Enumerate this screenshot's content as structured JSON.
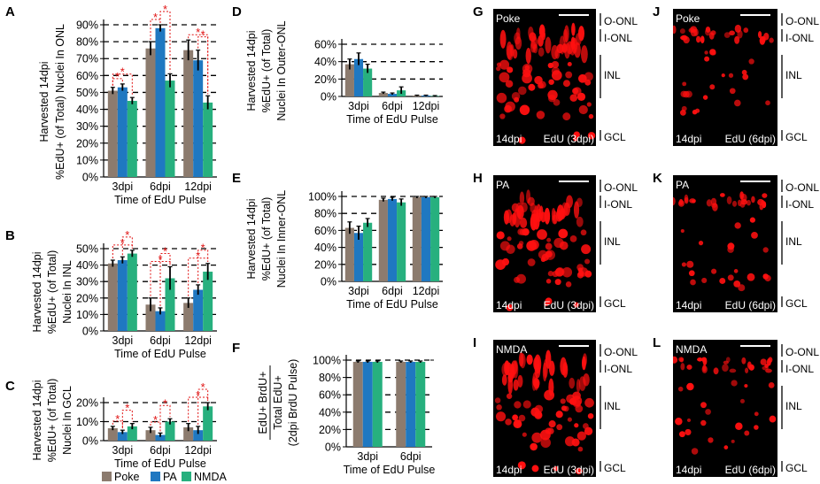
{
  "colors": {
    "Poke": "#8c7b6e",
    "PA": "#1f78c1",
    "NMDA": "#27b07e",
    "sig": "#e01010",
    "micro_bg": "#000000",
    "cell": "#ff1010"
  },
  "legend": [
    "Poke",
    "PA",
    "NMDA"
  ],
  "chart_data": [
    {
      "id": "A",
      "type": "bar",
      "categories": [
        "3dpi",
        "6dpi",
        "12dpi"
      ],
      "xlabel": "Time of EdU Pulse",
      "ylabel": [
        "Harvested 14dpi",
        "%EdU+ (of Total) Nuclei In ONL"
      ],
      "yticks": [
        "0%",
        "10%",
        "20%",
        "30%",
        "40%",
        "50%",
        "60%",
        "70%",
        "80%",
        "90%"
      ],
      "ylim": [
        0,
        90
      ],
      "series": [
        {
          "name": "Poke",
          "values": [
            51,
            76,
            75
          ],
          "errors": [
            2,
            4,
            6
          ]
        },
        {
          "name": "PA",
          "values": [
            53,
            88,
            69
          ],
          "errors": [
            2,
            2,
            6
          ]
        },
        {
          "name": "NMDA",
          "values": [
            45,
            57,
            44
          ],
          "errors": [
            2,
            4,
            4
          ]
        }
      ],
      "significance": [
        {
          "category": 0,
          "pairs": [
            [
              0,
              1
            ],
            [
              0,
              2
            ]
          ],
          "stars": 1
        },
        {
          "category": 1,
          "pairs": [
            [
              0,
              1
            ],
            [
              1,
              2
            ]
          ],
          "stars": 2
        },
        {
          "category": 2,
          "pairs": [
            [
              0,
              2
            ],
            [
              1,
              2
            ]
          ],
          "stars": 1
        }
      ]
    },
    {
      "id": "B",
      "type": "bar",
      "categories": [
        "3dpi",
        "6dpi",
        "12dpi"
      ],
      "xlabel": "Time of EdU Pulse",
      "ylabel": [
        "Harvested 14dpi",
        "%EdU+ (of Total)",
        "Nuclei In INL"
      ],
      "yticks": [
        "0%",
        "10%",
        "20%",
        "30%",
        "40%",
        "50%"
      ],
      "ylim": [
        0,
        50
      ],
      "series": [
        {
          "name": "Poke",
          "values": [
            41,
            16,
            17
          ],
          "errors": [
            2,
            4,
            3
          ]
        },
        {
          "name": "PA",
          "values": [
            43,
            12,
            25
          ],
          "errors": [
            2,
            2,
            3
          ]
        },
        {
          "name": "NMDA",
          "values": [
            47,
            32,
            36
          ],
          "errors": [
            2,
            7,
            5
          ]
        }
      ],
      "significance": [
        {
          "category": 0,
          "pairs": [
            [
              0,
              2
            ],
            [
              1,
              2
            ]
          ],
          "stars": 1
        },
        {
          "category": 1,
          "pairs": [
            [
              0,
              2
            ],
            [
              1,
              2
            ]
          ],
          "stars": 1
        },
        {
          "category": 2,
          "pairs": [
            [
              0,
              2
            ],
            [
              1,
              2
            ]
          ],
          "stars": 1
        }
      ]
    },
    {
      "id": "C",
      "type": "bar",
      "categories": [
        "3dpi",
        "6dpi",
        "12dpi"
      ],
      "xlabel": "Time of EdU Pulse",
      "ylabel": [
        "Harvested 14dpi",
        "%EdU+ (of Total)",
        "Nuclei In GCL"
      ],
      "yticks": [
        "0%",
        "10%",
        "20%"
      ],
      "ylim": [
        0,
        20
      ],
      "series": [
        {
          "name": "Poke",
          "values": [
            6.5,
            5.5,
            7
          ],
          "errors": [
            1,
            1.5,
            2
          ]
        },
        {
          "name": "PA",
          "values": [
            4.5,
            3,
            5.5
          ],
          "errors": [
            1,
            1,
            2
          ]
        },
        {
          "name": "NMDA",
          "values": [
            7.5,
            10,
            18
          ],
          "errors": [
            1.5,
            1.5,
            2
          ]
        }
      ],
      "significance": [
        {
          "category": 0,
          "pairs": [
            [
              0,
              1
            ],
            [
              1,
              2
            ]
          ],
          "stars": 2
        },
        {
          "category": 1,
          "pairs": [
            [
              0,
              1
            ],
            [
              1,
              2
            ]
          ],
          "stars": 2
        },
        {
          "category": 2,
          "pairs": [
            [
              0,
              2
            ],
            [
              1,
              2
            ]
          ],
          "stars": 1
        }
      ]
    },
    {
      "id": "D",
      "type": "bar",
      "categories": [
        "3dpi",
        "6dpi",
        "12dpi"
      ],
      "xlabel": "Time of EdU Pulse",
      "ylabel": [
        "Harvested 14dpi",
        "%EdU+ (of Total)",
        "Nuclei In Outer-ONL"
      ],
      "yticks": [
        "0%",
        "20%",
        "40%",
        "60%"
      ],
      "ylim": [
        0,
        60
      ],
      "series": [
        {
          "name": "Poke",
          "values": [
            37,
            4,
            1
          ],
          "errors": [
            6,
            1,
            0.5
          ]
        },
        {
          "name": "PA",
          "values": [
            43,
            3,
            1
          ],
          "errors": [
            7,
            1,
            0.5
          ]
        },
        {
          "name": "NMDA",
          "values": [
            32,
            7,
            0.5
          ],
          "errors": [
            5,
            4,
            0.5
          ]
        }
      ]
    },
    {
      "id": "E",
      "type": "bar",
      "categories": [
        "3dpi",
        "6dpi",
        "12dpi"
      ],
      "xlabel": "Time of EdU Pulse",
      "ylabel": [
        "Harvested 14dpi",
        "%EdU+ (of Total)",
        "Nuclei In Inner-ONL"
      ],
      "yticks": [
        "0%",
        "20%",
        "40%",
        "60%",
        "80%",
        "100%"
      ],
      "ylim": [
        0,
        100
      ],
      "series": [
        {
          "name": "Poke",
          "values": [
            63,
            96,
            99
          ],
          "errors": [
            7,
            2,
            1
          ]
        },
        {
          "name": "PA",
          "values": [
            57,
            97,
            99
          ],
          "errors": [
            8,
            2,
            1
          ]
        },
        {
          "name": "NMDA",
          "values": [
            69,
            93,
            99
          ],
          "errors": [
            5,
            4,
            1
          ]
        }
      ]
    },
    {
      "id": "F",
      "type": "bar",
      "categories": [
        "3dpi",
        "6dpi"
      ],
      "xlabel": "Time of EdU Pulse",
      "ylabel_fraction": [
        "EdU+ BrdU+",
        "Total EdU+"
      ],
      "ylabel_sub": "(2dpi BrdU Pulse)",
      "yticks": [
        "0%",
        "20%",
        "40%",
        "60%",
        "80%",
        "100%"
      ],
      "ylim": [
        0,
        100
      ],
      "series": [
        {
          "name": "Poke",
          "values": [
            98,
            98
          ],
          "errors": [
            1,
            1
          ]
        },
        {
          "name": "PA",
          "values": [
            98,
            98
          ],
          "errors": [
            1,
            1
          ]
        },
        {
          "name": "NMDA",
          "values": [
            98,
            98
          ],
          "errors": [
            1,
            1
          ]
        }
      ]
    }
  ],
  "micrographs": [
    {
      "id": "G",
      "condition": "Poke",
      "day": "14dpi",
      "pulse": "EdU (3dpi)",
      "layers": [
        "O-ONL",
        "I-ONL",
        "INL",
        "GCL"
      ]
    },
    {
      "id": "J",
      "condition": "Poke",
      "day": "14dpi",
      "pulse": "EdU (6dpi)",
      "layers": [
        "O-ONL",
        "I-ONL",
        "INL",
        "GCL"
      ]
    },
    {
      "id": "H",
      "condition": "PA",
      "day": "14dpi",
      "pulse": "EdU (3dpi)",
      "layers": [
        "O-ONL",
        "I-ONL",
        "INL",
        "GCL"
      ]
    },
    {
      "id": "K",
      "condition": "PA",
      "day": "14dpi",
      "pulse": "EdU (6dpi)",
      "layers": [
        "O-ONL",
        "I-ONL",
        "INL",
        "GCL"
      ]
    },
    {
      "id": "I",
      "condition": "NMDA",
      "day": "14dpi",
      "pulse": "EdU (3dpi)",
      "layers": [
        "O-ONL",
        "I-ONL",
        "INL",
        "GCL"
      ]
    },
    {
      "id": "L",
      "condition": "NMDA",
      "day": "14dpi",
      "pulse": "EdU (6dpi)",
      "layers": [
        "O-ONL",
        "I-ONL",
        "INL",
        "GCL"
      ]
    }
  ]
}
